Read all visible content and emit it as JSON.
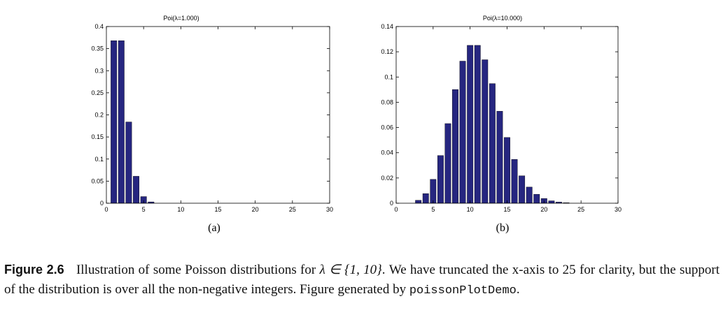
{
  "charts": {
    "chart_a": {
      "title": "Poi(λ=1.000)",
      "panel_label": "(a)"
    },
    "chart_b": {
      "title": "Poi(λ=10.000)",
      "panel_label": "(b)"
    }
  },
  "caption": {
    "figure_label": "Figure 2.6",
    "text_before_math": "Illustration of some Poisson distributions for",
    "math": "λ ∈ {1, 10}",
    "text_after_math": ". We have truncated the x-axis to 25 for clarity, but the support of the distribution is over all the non-negative integers. Figure generated by",
    "code": "poissonPlotDemo",
    "end": "."
  },
  "colors": {
    "bar_fill": "#262680",
    "axis": "#000000"
  },
  "chart_data": [
    {
      "type": "bar",
      "title": "Poi(λ=1.000)",
      "xlabel": "",
      "ylabel": "",
      "x": [
        1,
        2,
        3,
        4,
        5,
        6,
        7,
        8,
        9,
        10,
        11,
        12,
        13,
        14,
        15,
        16,
        17,
        18,
        19,
        20,
        21,
        22,
        23,
        24,
        25
      ],
      "values": [
        0.368,
        0.368,
        0.184,
        0.061,
        0.015,
        0.003,
        0.0005,
        0.0001,
        0,
        0,
        0,
        0,
        0,
        0,
        0,
        0,
        0,
        0,
        0,
        0,
        0,
        0,
        0,
        0,
        0
      ],
      "xlim": [
        0,
        30
      ],
      "ylim": [
        0,
        0.4
      ],
      "xticks": [
        "0",
        "5",
        "10",
        "15",
        "20",
        "25",
        "30"
      ],
      "yticks": [
        "0",
        "0.05",
        "0.1",
        "0.15",
        "0.2",
        "0.25",
        "0.3",
        "0.35",
        "0.4"
      ],
      "grid": false,
      "legend": "none"
    },
    {
      "type": "bar",
      "title": "Poi(λ=10.000)",
      "xlabel": "",
      "ylabel": "",
      "x": [
        1,
        2,
        3,
        4,
        5,
        6,
        7,
        8,
        9,
        10,
        11,
        12,
        13,
        14,
        15,
        16,
        17,
        18,
        19,
        20,
        21,
        22,
        23,
        24,
        25
      ],
      "values": [
        0.0,
        0.0002,
        0.0023,
        0.0076,
        0.0189,
        0.0378,
        0.0631,
        0.0901,
        0.1126,
        0.1251,
        0.1251,
        0.1137,
        0.0948,
        0.0729,
        0.0521,
        0.0347,
        0.0217,
        0.0128,
        0.0071,
        0.0037,
        0.0019,
        0.0009,
        0.0004,
        0.0002,
        0.0001
      ],
      "xlim": [
        0,
        30
      ],
      "ylim": [
        0,
        0.14
      ],
      "xticks": [
        "0",
        "5",
        "10",
        "15",
        "20",
        "25",
        "30"
      ],
      "yticks": [
        "0",
        "0.02",
        "0.04",
        "0.06",
        "0.08",
        "0.1",
        "0.12",
        "0.14"
      ],
      "grid": false,
      "legend": "none"
    }
  ]
}
